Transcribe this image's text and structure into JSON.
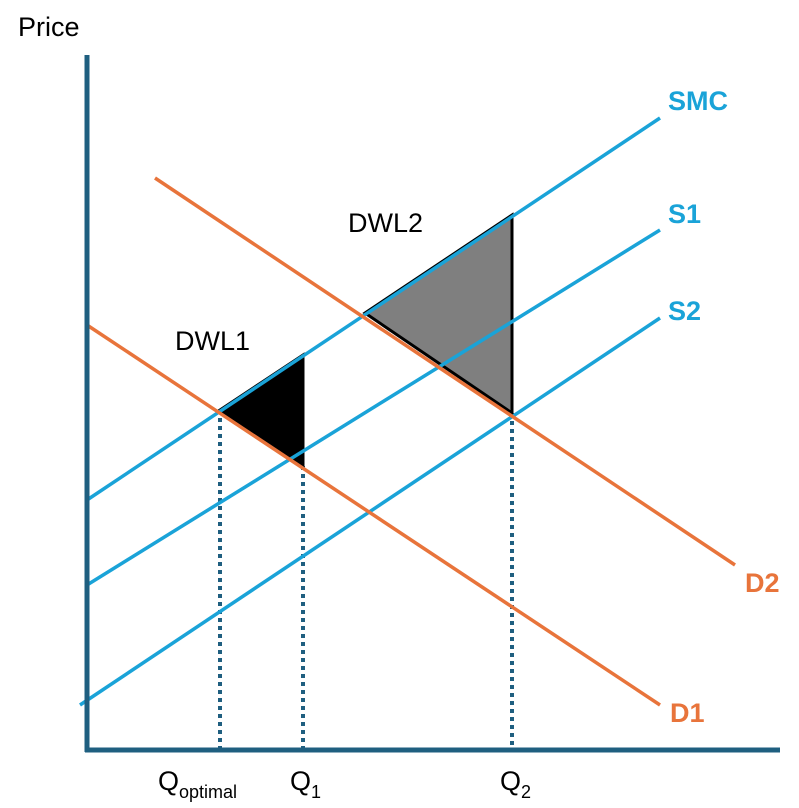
{
  "axis": {
    "y_label": "Price"
  },
  "curves": [
    {
      "label": "SMC"
    },
    {
      "label": "S1"
    },
    {
      "label": "S2"
    },
    {
      "label": "D2"
    },
    {
      "label": "D1"
    }
  ],
  "areas": [
    {
      "label": "DWL1"
    },
    {
      "label": "DWL2"
    }
  ],
  "quantities": [
    {
      "symbol": "Q",
      "subscript": "optimal"
    },
    {
      "symbol": "Q",
      "subscript": "1"
    },
    {
      "symbol": "Q",
      "subscript": "2"
    }
  ]
}
